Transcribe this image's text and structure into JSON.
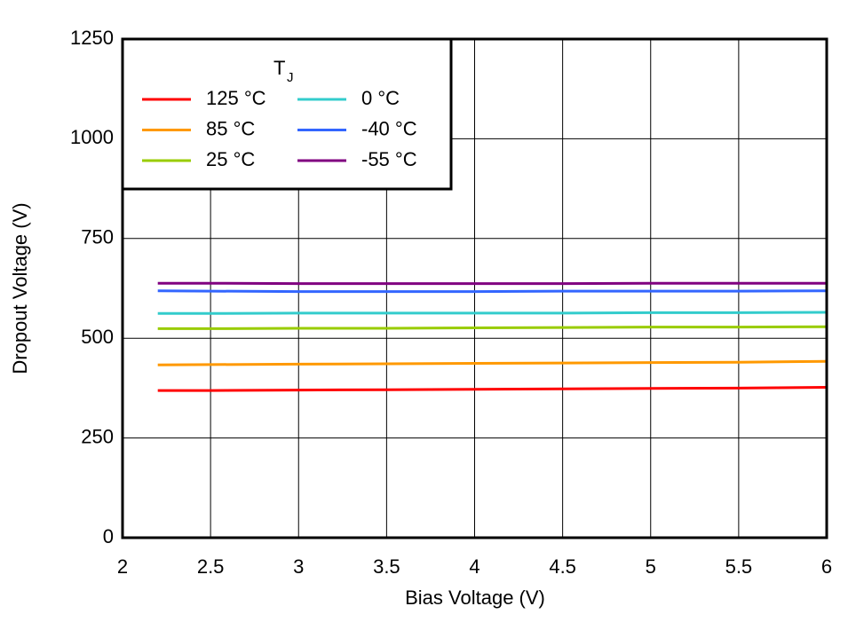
{
  "chart_data": {
    "type": "line",
    "x_label": "Bias Voltage (V)",
    "y_label": "Dropout Voltage (V)",
    "legend_title": {
      "main": "T",
      "sub": "J"
    },
    "x": [
      2.2,
      2.5,
      3,
      3.5,
      4,
      4.5,
      5,
      5.5,
      6
    ],
    "series": [
      {
        "name": "125 °C",
        "color": "#ff0000",
        "values": [
          369,
          369,
          370,
          371,
          372,
          373,
          374,
          375,
          377
        ]
      },
      {
        "name": "85 °C",
        "color": "#ff9900",
        "values": [
          433,
          434,
          435,
          436,
          437,
          438,
          439,
          440,
          442
        ]
      },
      {
        "name": "25 °C",
        "color": "#99cc00",
        "values": [
          524,
          524,
          525,
          525,
          526,
          527,
          528,
          528,
          529
        ]
      },
      {
        "name": "0 °C",
        "color": "#33cccc",
        "values": [
          562,
          562,
          563,
          563,
          563,
          563,
          564,
          564,
          565
        ]
      },
      {
        "name": "-40 °C",
        "color": "#3366ff",
        "values": [
          619,
          618,
          617,
          617,
          617,
          618,
          618,
          618,
          619
        ]
      },
      {
        "name": "-55 °C",
        "color": "#800080",
        "values": [
          638,
          638,
          637,
          637,
          637,
          637,
          638,
          638,
          638
        ]
      }
    ],
    "xlim": [
      2,
      6
    ],
    "xticks": [
      2,
      2.5,
      3,
      3.5,
      4,
      4.5,
      5,
      5.5,
      6
    ],
    "ylim": [
      0,
      1250
    ],
    "yticks": [
      0,
      250,
      500,
      750,
      1000,
      1250
    ],
    "grid": true,
    "legend_position": "upper-left"
  }
}
